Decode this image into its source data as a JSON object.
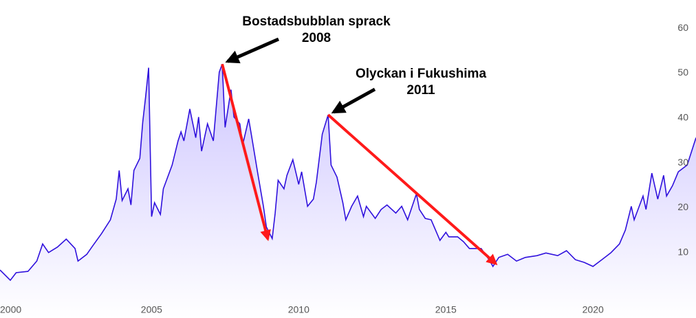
{
  "chart_data": {
    "type": "area",
    "x": [
      1999.85,
      2000.2,
      2000.4,
      2000.8,
      2001.1,
      2001.3,
      2001.5,
      2001.8,
      2002.1,
      2002.4,
      2002.5,
      2002.8,
      2003.0,
      2003.3,
      2003.6,
      2003.8,
      2003.9,
      2004.0,
      2004.2,
      2004.3,
      2004.4,
      2004.6,
      2004.7,
      2004.8,
      2004.9,
      2005.0,
      2005.1,
      2005.3,
      2005.4,
      2005.7,
      2005.9,
      2006.0,
      2006.1,
      2006.3,
      2006.5,
      2006.6,
      2006.7,
      2006.9,
      2007.1,
      2007.3,
      2007.4,
      2007.5,
      2007.7,
      2007.8,
      2008.0,
      2008.1,
      2008.3,
      2008.4,
      2008.6,
      2008.8,
      2008.9,
      2009.1,
      2009.2,
      2009.3,
      2009.5,
      2009.6,
      2009.8,
      2010.0,
      2010.1,
      2010.3,
      2010.5,
      2010.6,
      2010.8,
      2011.0,
      2011.1,
      2011.3,
      2011.5,
      2011.6,
      2011.8,
      2012.0,
      2012.2,
      2012.3,
      2012.6,
      2012.8,
      2013.0,
      2013.3,
      2013.5,
      2013.7,
      2014.0,
      2014.1,
      2014.3,
      2014.5,
      2014.8,
      2015.0,
      2015.1,
      2015.4,
      2015.6,
      2015.8,
      2016.2,
      2016.5,
      2016.6,
      2016.8,
      2017.1,
      2017.4,
      2017.7,
      2018.1,
      2018.4,
      2018.8,
      2019.1,
      2019.4,
      2019.7,
      2020.0,
      2020.3,
      2020.6,
      2020.9,
      2021.1,
      2021.3,
      2021.4,
      2021.7,
      2021.8,
      2022.0,
      2022.2,
      2022.4,
      2022.5,
      2022.7,
      2022.9,
      2023.2,
      2023.5
    ],
    "values": [
      6.1,
      3.8,
      5.5,
      5.8,
      8.1,
      11.9,
      10,
      11.2,
      13,
      10.9,
      8.1,
      9.6,
      11.5,
      14.2,
      17.3,
      21.9,
      28.3,
      21.6,
      24.2,
      20.6,
      28.3,
      31,
      39,
      44.8,
      51.2,
      18,
      21.1,
      18.5,
      24.2,
      29.5,
      34.9,
      36.9,
      34.9,
      42,
      35.6,
      40.2,
      32.6,
      38.7,
      34.9,
      50.2,
      52,
      37.9,
      46.3,
      40.2,
      38.7,
      34.1,
      39.8,
      35.9,
      28,
      20.3,
      15.7,
      13.1,
      18.8,
      26.1,
      24.2,
      27.2,
      30.7,
      25.2,
      28,
      20.3,
      21.9,
      25.7,
      36.4,
      40.7,
      29.5,
      26.8,
      21.1,
      17.3,
      20.3,
      22.6,
      18,
      20.3,
      17.6,
      19.6,
      20.6,
      18.8,
      20.3,
      17.3,
      23.1,
      19.6,
      17.6,
      17.3,
      12.7,
      14.5,
      13.5,
      13.5,
      12.4,
      10.9,
      10.9,
      8.1,
      6.9,
      8.9,
      9.6,
      8.1,
      8.9,
      9.3,
      9.9,
      9.3,
      10.4,
      8.4,
      7.8,
      6.9,
      8.4,
      9.9,
      11.9,
      15,
      20.3,
      17.3,
      22.6,
      19.6,
      27.7,
      21.9,
      27.2,
      22.6,
      24.9,
      28,
      29.5,
      35.6
    ],
    "color": "#2f10dd",
    "xlim": [
      1999.85,
      2023.5
    ],
    "ylim": [
      -4.6,
      66.3
    ],
    "xticks": [
      2000,
      2005,
      2010,
      2015,
      2020
    ],
    "yticks": [
      10,
      20,
      30,
      40,
      50,
      60
    ],
    "annotations": [
      {
        "text": [
          "Bostadsbubblan sprack",
          "2008"
        ],
        "x": 2007.4,
        "y": 52,
        "end_x": 2008.95,
        "end_y": 13
      },
      {
        "text": [
          "Olyckan i Fukushima",
          "2011"
        ],
        "x": 2011.0,
        "y": 40.7,
        "end_x": 2016.7,
        "end_y": 7.5
      }
    ],
    "arrow_color": "#ff1a1a"
  }
}
